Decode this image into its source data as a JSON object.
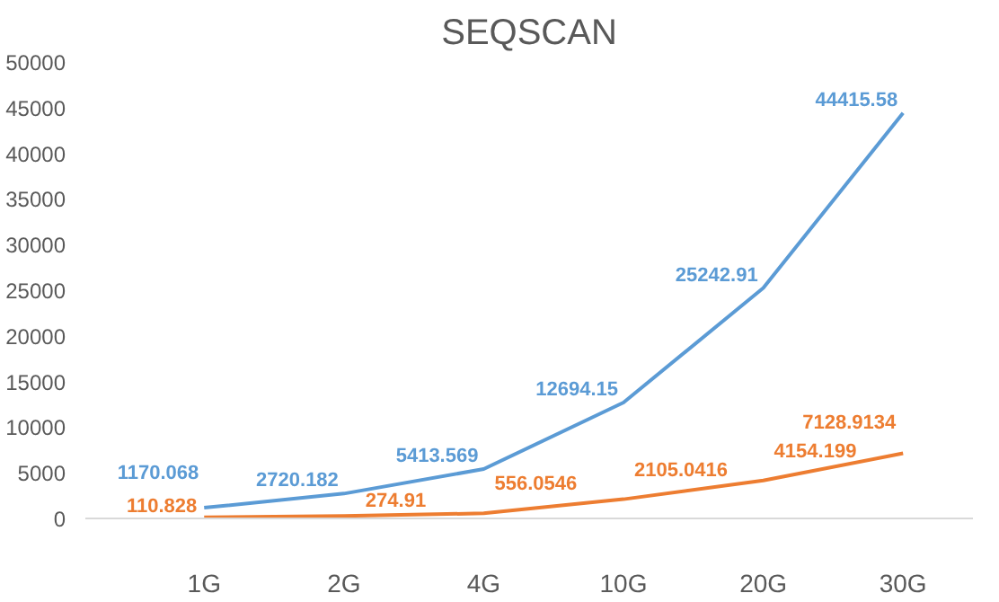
{
  "chart_data": {
    "type": "line",
    "title": "SEQSCAN",
    "categories": [
      "1G",
      "2G",
      "4G",
      "10G",
      "20G",
      "30G"
    ],
    "series": [
      {
        "color": "#5b9bd5",
        "values": [
          1170.068,
          2720.182,
          5413.569,
          12694.15,
          25242.91,
          44415.58
        ]
      },
      {
        "color": "#ed7d31",
        "values": [
          110.828,
          274.91,
          556.0546,
          2105.0416,
          4154.199,
          7128.9134
        ]
      }
    ],
    "ylim": [
      0,
      50000
    ],
    "yticks": [
      0,
      5000,
      10000,
      15000,
      20000,
      25000,
      30000,
      35000,
      40000,
      45000,
      50000
    ],
    "grid": false,
    "marker": "none",
    "line_style": "solid",
    "data_labels": true
  }
}
